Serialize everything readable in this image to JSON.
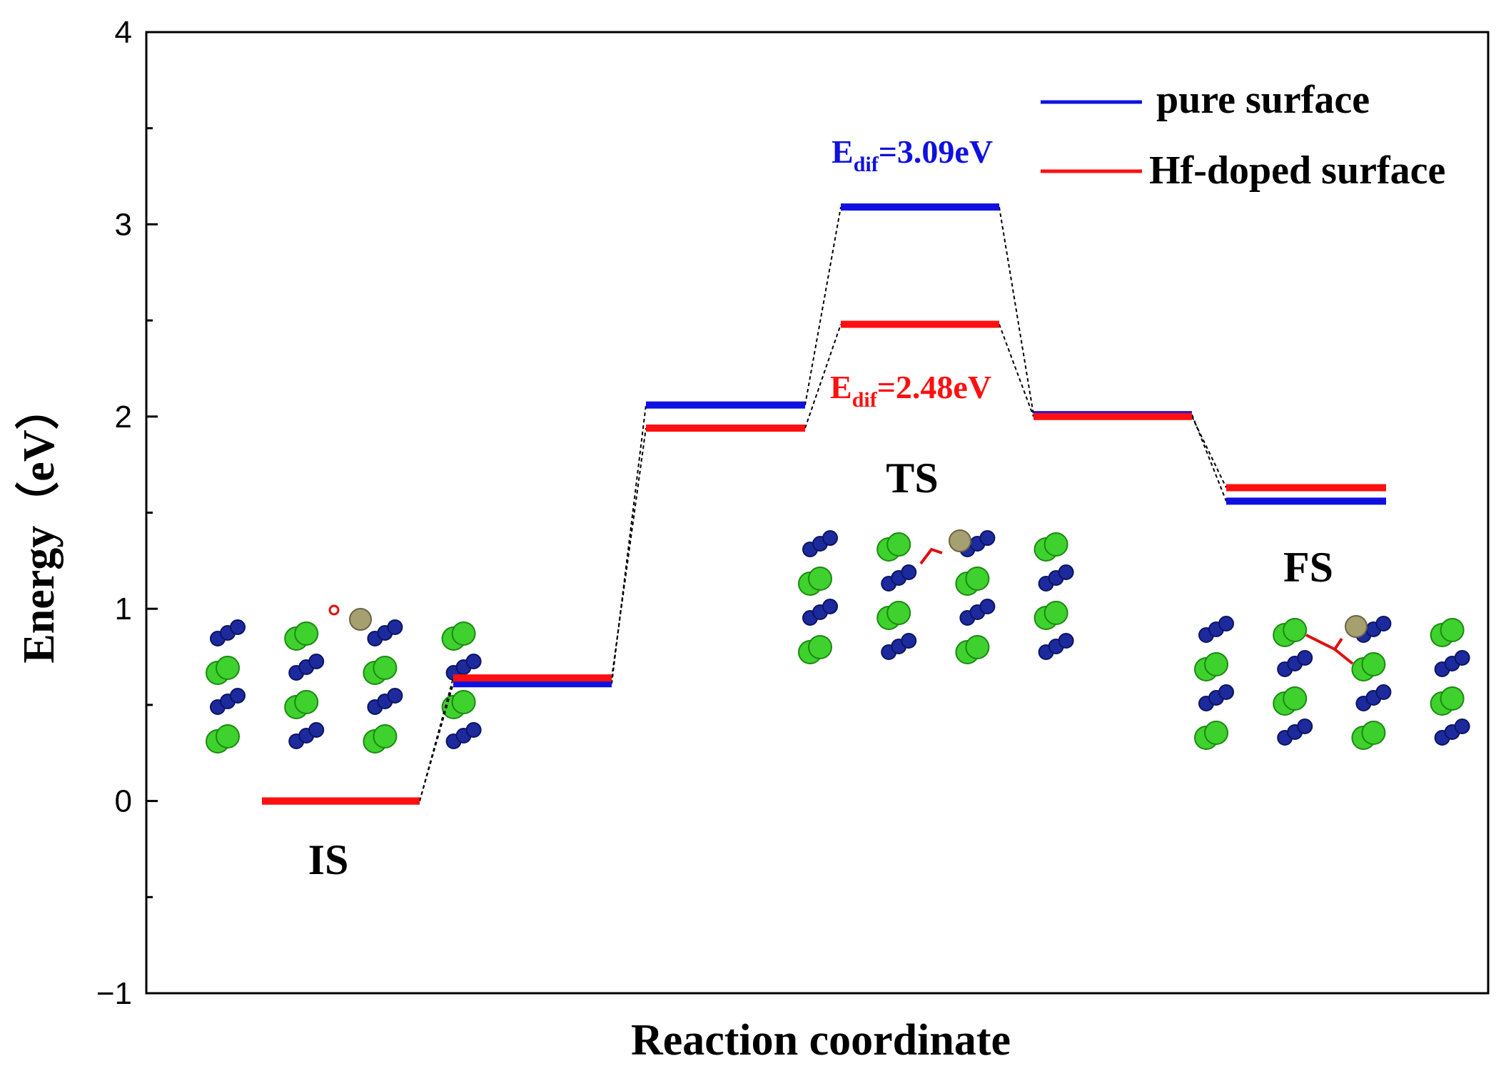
{
  "chart_data": {
    "type": "line",
    "xlabel": "Reaction coordinate",
    "ylabel": "Energy（eV）",
    "ylim": [
      -1,
      4
    ],
    "yticks": [
      "4",
      "3",
      "2",
      "1",
      "0",
      "−1"
    ],
    "grid": false,
    "legend_position": "top-right",
    "series": [
      {
        "name": "pure surface",
        "color": "#1010e0",
        "values": [
          0.0,
          0.61,
          2.06,
          3.09,
          2.01,
          1.56
        ]
      },
      {
        "name": "Hf-doped surface",
        "color": "#ff1010",
        "values": [
          0.0,
          0.64,
          1.94,
          2.48,
          2.0,
          1.63
        ]
      }
    ],
    "state_labels": [
      "IS",
      "TS",
      "FS"
    ],
    "annotations": [
      {
        "main": "E",
        "sub": "dif",
        "value": "=3.09eV",
        "color": "#1010e0"
      },
      {
        "main": "E",
        "sub": "dif",
        "value": "=2.48eV",
        "color": "#ff1010"
      }
    ]
  }
}
